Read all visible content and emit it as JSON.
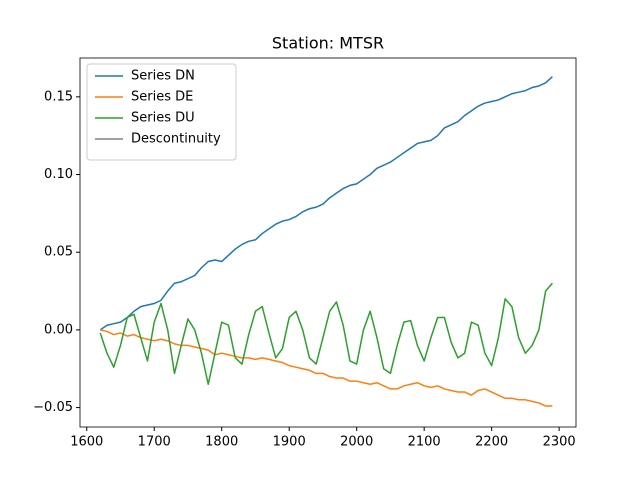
{
  "chart_data": {
    "type": "line",
    "title": "Station: MTSR",
    "x": [
      1620,
      1630,
      1640,
      1650,
      1660,
      1670,
      1680,
      1690,
      1700,
      1710,
      1720,
      1730,
      1740,
      1750,
      1760,
      1770,
      1780,
      1790,
      1800,
      1810,
      1820,
      1830,
      1840,
      1850,
      1860,
      1870,
      1880,
      1890,
      1900,
      1910,
      1920,
      1930,
      1940,
      1950,
      1960,
      1970,
      1980,
      1990,
      2000,
      2010,
      2020,
      2030,
      2040,
      2050,
      2060,
      2070,
      2080,
      2090,
      2100,
      2110,
      2120,
      2130,
      2140,
      2150,
      2160,
      2170,
      2180,
      2190,
      2200,
      2210,
      2220,
      2230,
      2240,
      2250,
      2260,
      2270,
      2280,
      2290
    ],
    "series": [
      {
        "name": "Series DN",
        "color": "#1f77b4",
        "values": [
          0.0,
          0.003,
          0.004,
          0.005,
          0.008,
          0.012,
          0.015,
          0.016,
          0.017,
          0.019,
          0.025,
          0.03,
          0.031,
          0.033,
          0.035,
          0.04,
          0.044,
          0.045,
          0.044,
          0.048,
          0.052,
          0.055,
          0.057,
          0.058,
          0.062,
          0.065,
          0.068,
          0.07,
          0.071,
          0.073,
          0.076,
          0.078,
          0.079,
          0.081,
          0.085,
          0.088,
          0.091,
          0.093,
          0.094,
          0.097,
          0.1,
          0.104,
          0.106,
          0.108,
          0.111,
          0.114,
          0.117,
          0.12,
          0.121,
          0.122,
          0.125,
          0.13,
          0.132,
          0.134,
          0.138,
          0.141,
          0.144,
          0.146,
          0.147,
          0.148,
          0.15,
          0.152,
          0.153,
          0.154,
          0.156,
          0.157,
          0.159,
          0.163
        ]
      },
      {
        "name": "Series DE",
        "color": "#ff7f0e",
        "values": [
          0.0,
          -0.001,
          -0.003,
          -0.002,
          -0.004,
          -0.003,
          -0.005,
          -0.006,
          -0.007,
          -0.006,
          -0.007,
          -0.009,
          -0.01,
          -0.01,
          -0.011,
          -0.012,
          -0.013,
          -0.016,
          -0.015,
          -0.016,
          -0.017,
          -0.018,
          -0.018,
          -0.019,
          -0.018,
          -0.019,
          -0.02,
          -0.021,
          -0.023,
          -0.024,
          -0.025,
          -0.026,
          -0.028,
          -0.028,
          -0.03,
          -0.031,
          -0.031,
          -0.033,
          -0.033,
          -0.034,
          -0.035,
          -0.034,
          -0.036,
          -0.038,
          -0.038,
          -0.036,
          -0.035,
          -0.034,
          -0.036,
          -0.037,
          -0.036,
          -0.038,
          -0.039,
          -0.04,
          -0.04,
          -0.042,
          -0.039,
          -0.038,
          -0.04,
          -0.042,
          -0.044,
          -0.044,
          -0.045,
          -0.045,
          -0.046,
          -0.047,
          -0.049,
          -0.049
        ]
      },
      {
        "name": "Series DU",
        "color": "#2ca02c",
        "values": [
          -0.002,
          -0.015,
          -0.024,
          -0.01,
          0.008,
          0.01,
          -0.005,
          -0.02,
          0.005,
          0.017,
          0.0,
          -0.028,
          -0.01,
          0.007,
          0.0,
          -0.015,
          -0.035,
          -0.015,
          0.005,
          0.003,
          -0.018,
          -0.022,
          -0.003,
          0.012,
          0.015,
          -0.002,
          -0.018,
          -0.012,
          0.008,
          0.012,
          0.0,
          -0.018,
          -0.022,
          -0.005,
          0.012,
          0.018,
          0.003,
          -0.02,
          -0.022,
          0.0,
          0.012,
          -0.005,
          -0.025,
          -0.028,
          -0.01,
          0.005,
          0.006,
          -0.01,
          -0.02,
          -0.005,
          0.008,
          0.008,
          -0.008,
          -0.018,
          -0.015,
          0.005,
          0.003,
          -0.015,
          -0.023,
          -0.005,
          0.02,
          0.015,
          -0.005,
          -0.015,
          -0.01,
          0.0,
          0.025,
          0.03
        ]
      },
      {
        "name": "Descontinuity",
        "color": "#808080",
        "values": [
          null,
          null,
          null,
          null,
          null,
          null,
          null,
          null,
          null,
          null,
          null,
          null,
          null,
          null,
          null,
          null,
          null,
          null,
          null,
          null,
          null,
          null,
          null,
          null,
          null,
          null,
          null,
          null,
          null,
          null,
          null,
          null,
          null,
          null,
          null,
          null,
          null,
          null,
          null,
          null,
          null,
          null,
          null,
          null,
          null,
          null,
          null,
          null,
          null,
          null,
          null,
          null,
          null,
          null,
          null,
          null,
          null,
          null,
          null,
          null,
          null,
          null,
          null,
          null,
          null,
          null,
          null,
          null
        ]
      }
    ],
    "xlim": [
      1590,
      2325
    ],
    "xticks": [
      1600,
      1700,
      1800,
      1900,
      2000,
      2100,
      2200,
      2300
    ],
    "ylim": [
      -0.0625,
      0.175
    ],
    "yticks": [
      {
        "value": -0.05,
        "label": "−0.05"
      },
      {
        "value": 0,
        "label": "0.00"
      },
      0.05,
      {
        "value": 0.1,
        "label": "0.10"
      },
      0.15
    ],
    "legend": "upper left"
  }
}
